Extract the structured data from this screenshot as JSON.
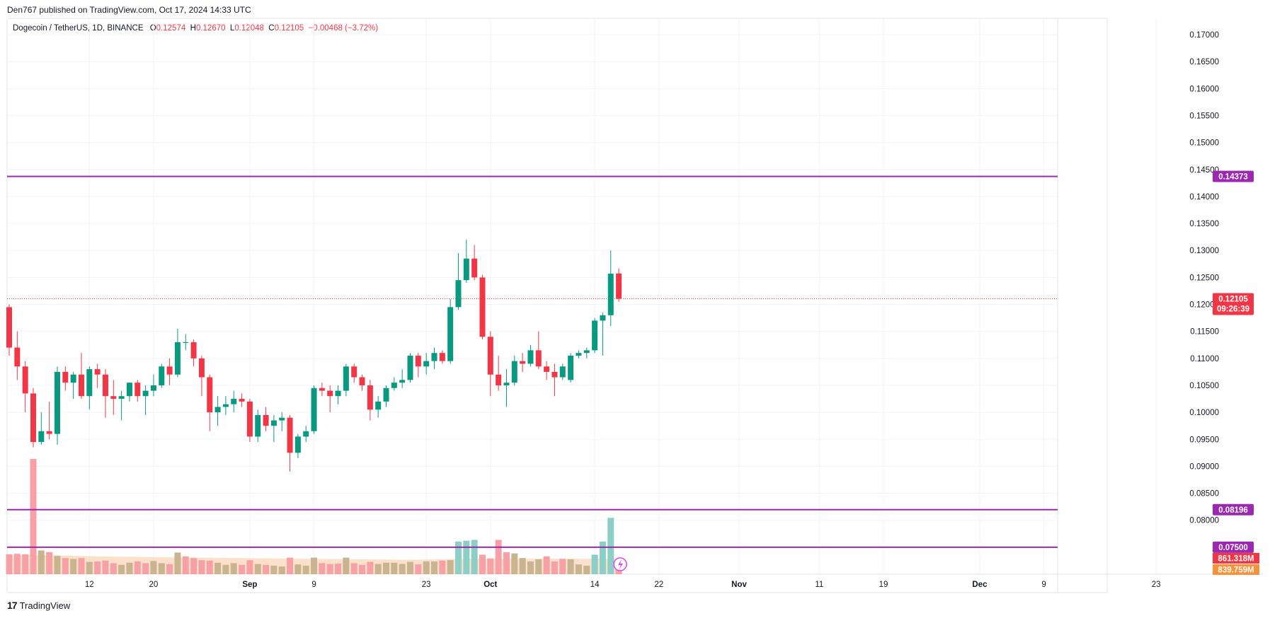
{
  "header": {
    "published": "Den767 published on TradingView.com, Oct 17, 2024 14:33 UTC"
  },
  "legend": {
    "symbol": "Dogecoin / TetherUS, 1D, BINANCE",
    "o_label": "O",
    "o_value": "0.12574",
    "h_label": "H",
    "h_value": "0.12670",
    "l_label": "L",
    "l_value": "0.12048",
    "c_label": "C",
    "c_value": "0.12105",
    "change": "−0.00468 (−3.72%)"
  },
  "footer": {
    "brand": "TradingView",
    "logo": "17"
  },
  "colors": {
    "up": "#089981",
    "down": "#f23645",
    "level_line": "#9c27b0",
    "vol_up": "#8ccfc7",
    "vol_down": "#f7a1a6",
    "vol_neutral": "#c8b48f",
    "vol_ma": "#f8c49a",
    "grid": "#f0f3fa",
    "current_price": "#f23645"
  },
  "chart_data": {
    "type": "candlestick",
    "y_axis": {
      "min": 0.07,
      "max": 0.1725,
      "ticks": [
        "0.17000",
        "0.16500",
        "0.16000",
        "0.15500",
        "0.15000",
        "0.14500",
        "0.14000",
        "0.13500",
        "0.13000",
        "0.12500",
        "0.12000",
        "0.11500",
        "0.11000",
        "0.10500",
        "0.10000",
        "0.09500",
        "0.09000",
        "0.08500",
        "0.08000"
      ]
    },
    "x_axis": {
      "start_date": "2024-08-02",
      "ticks": [
        {
          "label": "12",
          "date": "2024-08-12"
        },
        {
          "label": "20",
          "date": "2024-08-20"
        },
        {
          "label": "Sep",
          "date": "2024-09-01",
          "bold": true
        },
        {
          "label": "9",
          "date": "2024-09-09"
        },
        {
          "label": "23",
          "date": "2024-09-23"
        },
        {
          "label": "Oct",
          "date": "2024-10-01",
          "bold": true
        },
        {
          "label": "14",
          "date": "2024-10-14"
        },
        {
          "label": "22",
          "date": "2024-10-22"
        },
        {
          "label": "Nov",
          "date": "2024-11-01",
          "bold": true
        },
        {
          "label": "11",
          "date": "2024-11-11"
        },
        {
          "label": "19",
          "date": "2024-11-19"
        },
        {
          "label": "Dec",
          "date": "2024-12-01",
          "bold": true
        },
        {
          "label": "9",
          "date": "2024-12-09"
        },
        {
          "label": "23",
          "date": "2024-12-23"
        }
      ]
    },
    "horizontal_levels": [
      {
        "price": 0.14373,
        "label": "0.14373"
      },
      {
        "price": 0.08196,
        "label": "0.08196"
      },
      {
        "price": 0.075,
        "label": "0.07500"
      }
    ],
    "current_price": {
      "price": 0.12105,
      "label": "0.12105",
      "countdown": "09:26:39"
    },
    "volume_labels": [
      {
        "label": "861.318M",
        "color": "#f23645"
      },
      {
        "label": "839.759M",
        "color": "#f7923a"
      }
    ],
    "candles": [
      {
        "date": "2024-08-02",
        "o": 0.1195,
        "h": 0.12,
        "l": 0.1105,
        "c": 0.112
      },
      {
        "date": "2024-08-03",
        "o": 0.112,
        "h": 0.115,
        "l": 0.106,
        "c": 0.1085
      },
      {
        "date": "2024-08-04",
        "o": 0.1085,
        "h": 0.1095,
        "l": 0.1,
        "c": 0.1035
      },
      {
        "date": "2024-08-05",
        "o": 0.1035,
        "h": 0.1045,
        "l": 0.0935,
        "c": 0.0945
      },
      {
        "date": "2024-08-06",
        "o": 0.0945,
        "h": 0.1,
        "l": 0.094,
        "c": 0.0965
      },
      {
        "date": "2024-08-07",
        "o": 0.0965,
        "h": 0.102,
        "l": 0.095,
        "c": 0.096
      },
      {
        "date": "2024-08-08",
        "o": 0.096,
        "h": 0.1085,
        "l": 0.094,
        "c": 0.1075
      },
      {
        "date": "2024-08-09",
        "o": 0.1075,
        "h": 0.1085,
        "l": 0.104,
        "c": 0.1055
      },
      {
        "date": "2024-08-10",
        "o": 0.1055,
        "h": 0.1075,
        "l": 0.1025,
        "c": 0.107
      },
      {
        "date": "2024-08-11",
        "o": 0.107,
        "h": 0.111,
        "l": 0.1025,
        "c": 0.103
      },
      {
        "date": "2024-08-12",
        "o": 0.103,
        "h": 0.1085,
        "l": 0.1005,
        "c": 0.108
      },
      {
        "date": "2024-08-13",
        "o": 0.108,
        "h": 0.109,
        "l": 0.1045,
        "c": 0.107
      },
      {
        "date": "2024-08-14",
        "o": 0.107,
        "h": 0.108,
        "l": 0.099,
        "c": 0.103
      },
      {
        "date": "2024-08-15",
        "o": 0.103,
        "h": 0.106,
        "l": 0.0995,
        "c": 0.1025
      },
      {
        "date": "2024-08-16",
        "o": 0.1025,
        "h": 0.104,
        "l": 0.0985,
        "c": 0.103
      },
      {
        "date": "2024-08-17",
        "o": 0.103,
        "h": 0.1055,
        "l": 0.102,
        "c": 0.1055
      },
      {
        "date": "2024-08-18",
        "o": 0.1055,
        "h": 0.106,
        "l": 0.102,
        "c": 0.103
      },
      {
        "date": "2024-08-19",
        "o": 0.103,
        "h": 0.105,
        "l": 0.0995,
        "c": 0.104
      },
      {
        "date": "2024-08-20",
        "o": 0.104,
        "h": 0.107,
        "l": 0.103,
        "c": 0.105
      },
      {
        "date": "2024-08-21",
        "o": 0.105,
        "h": 0.109,
        "l": 0.1045,
        "c": 0.1085
      },
      {
        "date": "2024-08-22",
        "o": 0.1085,
        "h": 0.11,
        "l": 0.105,
        "c": 0.107
      },
      {
        "date": "2024-08-23",
        "o": 0.107,
        "h": 0.1155,
        "l": 0.1065,
        "c": 0.113
      },
      {
        "date": "2024-08-24",
        "o": 0.113,
        "h": 0.1145,
        "l": 0.1115,
        "c": 0.113
      },
      {
        "date": "2024-08-25",
        "o": 0.113,
        "h": 0.1135,
        "l": 0.1085,
        "c": 0.11
      },
      {
        "date": "2024-08-26",
        "o": 0.11,
        "h": 0.1105,
        "l": 0.103,
        "c": 0.1065
      },
      {
        "date": "2024-08-27",
        "o": 0.1065,
        "h": 0.107,
        "l": 0.0965,
        "c": 0.1
      },
      {
        "date": "2024-08-28",
        "o": 0.1,
        "h": 0.103,
        "l": 0.0975,
        "c": 0.101
      },
      {
        "date": "2024-08-29",
        "o": 0.101,
        "h": 0.103,
        "l": 0.0995,
        "c": 0.1015
      },
      {
        "date": "2024-08-30",
        "o": 0.1015,
        "h": 0.104,
        "l": 0.1,
        "c": 0.1025
      },
      {
        "date": "2024-08-31",
        "o": 0.1025,
        "h": 0.1035,
        "l": 0.101,
        "c": 0.102
      },
      {
        "date": "2024-09-01",
        "o": 0.102,
        "h": 0.1025,
        "l": 0.0945,
        "c": 0.0955
      },
      {
        "date": "2024-09-02",
        "o": 0.0955,
        "h": 0.1005,
        "l": 0.0945,
        "c": 0.0995
      },
      {
        "date": "2024-09-03",
        "o": 0.0995,
        "h": 0.101,
        "l": 0.0965,
        "c": 0.0975
      },
      {
        "date": "2024-09-04",
        "o": 0.0975,
        "h": 0.0995,
        "l": 0.0945,
        "c": 0.0985
      },
      {
        "date": "2024-09-05",
        "o": 0.0985,
        "h": 0.1,
        "l": 0.0965,
        "c": 0.099
      },
      {
        "date": "2024-09-06",
        "o": 0.099,
        "h": 0.0995,
        "l": 0.089,
        "c": 0.0925
      },
      {
        "date": "2024-09-07",
        "o": 0.0925,
        "h": 0.096,
        "l": 0.0915,
        "c": 0.0955
      },
      {
        "date": "2024-09-08",
        "o": 0.0955,
        "h": 0.0975,
        "l": 0.0945,
        "c": 0.0965
      },
      {
        "date": "2024-09-09",
        "o": 0.0965,
        "h": 0.105,
        "l": 0.096,
        "c": 0.1045
      },
      {
        "date": "2024-09-10",
        "o": 0.1045,
        "h": 0.1055,
        "l": 0.103,
        "c": 0.104
      },
      {
        "date": "2024-09-11",
        "o": 0.104,
        "h": 0.105,
        "l": 0.1,
        "c": 0.103
      },
      {
        "date": "2024-09-12",
        "o": 0.103,
        "h": 0.105,
        "l": 0.1015,
        "c": 0.104
      },
      {
        "date": "2024-09-13",
        "o": 0.104,
        "h": 0.109,
        "l": 0.103,
        "c": 0.1085
      },
      {
        "date": "2024-09-14",
        "o": 0.1085,
        "h": 0.109,
        "l": 0.1055,
        "c": 0.1065
      },
      {
        "date": "2024-09-15",
        "o": 0.1065,
        "h": 0.107,
        "l": 0.104,
        "c": 0.105
      },
      {
        "date": "2024-09-16",
        "o": 0.105,
        "h": 0.106,
        "l": 0.0985,
        "c": 0.1005
      },
      {
        "date": "2024-09-17",
        "o": 0.1005,
        "h": 0.103,
        "l": 0.099,
        "c": 0.102
      },
      {
        "date": "2024-09-18",
        "o": 0.102,
        "h": 0.105,
        "l": 0.101,
        "c": 0.1045
      },
      {
        "date": "2024-09-19",
        "o": 0.1045,
        "h": 0.1065,
        "l": 0.104,
        "c": 0.1055
      },
      {
        "date": "2024-09-20",
        "o": 0.1055,
        "h": 0.108,
        "l": 0.1045,
        "c": 0.106
      },
      {
        "date": "2024-09-21",
        "o": 0.106,
        "h": 0.111,
        "l": 0.1055,
        "c": 0.1105
      },
      {
        "date": "2024-09-22",
        "o": 0.1105,
        "h": 0.111,
        "l": 0.1065,
        "c": 0.1085
      },
      {
        "date": "2024-09-23",
        "o": 0.1085,
        "h": 0.111,
        "l": 0.107,
        "c": 0.1095
      },
      {
        "date": "2024-09-24",
        "o": 0.1095,
        "h": 0.112,
        "l": 0.108,
        "c": 0.111
      },
      {
        "date": "2024-09-25",
        "o": 0.111,
        "h": 0.1115,
        "l": 0.109,
        "c": 0.1095
      },
      {
        "date": "2024-09-26",
        "o": 0.1095,
        "h": 0.121,
        "l": 0.109,
        "c": 0.1195
      },
      {
        "date": "2024-09-27",
        "o": 0.1195,
        "h": 0.1295,
        "l": 0.119,
        "c": 0.1245
      },
      {
        "date": "2024-09-28",
        "o": 0.1245,
        "h": 0.132,
        "l": 0.124,
        "c": 0.1285
      },
      {
        "date": "2024-09-29",
        "o": 0.1285,
        "h": 0.131,
        "l": 0.1245,
        "c": 0.125
      },
      {
        "date": "2024-09-30",
        "o": 0.125,
        "h": 0.1255,
        "l": 0.1135,
        "c": 0.114
      },
      {
        "date": "2024-10-01",
        "o": 0.114,
        "h": 0.115,
        "l": 0.103,
        "c": 0.107
      },
      {
        "date": "2024-10-02",
        "o": 0.107,
        "h": 0.1105,
        "l": 0.104,
        "c": 0.105
      },
      {
        "date": "2024-10-03",
        "o": 0.105,
        "h": 0.108,
        "l": 0.101,
        "c": 0.1055
      },
      {
        "date": "2024-10-04",
        "o": 0.1055,
        "h": 0.1105,
        "l": 0.105,
        "c": 0.1095
      },
      {
        "date": "2024-10-05",
        "o": 0.1095,
        "h": 0.111,
        "l": 0.1075,
        "c": 0.109
      },
      {
        "date": "2024-10-06",
        "o": 0.109,
        "h": 0.1125,
        "l": 0.1085,
        "c": 0.1115
      },
      {
        "date": "2024-10-07",
        "o": 0.1115,
        "h": 0.115,
        "l": 0.108,
        "c": 0.1085
      },
      {
        "date": "2024-10-08",
        "o": 0.1085,
        "h": 0.1095,
        "l": 0.106,
        "c": 0.1075
      },
      {
        "date": "2024-10-09",
        "o": 0.1075,
        "h": 0.109,
        "l": 0.103,
        "c": 0.1065
      },
      {
        "date": "2024-10-10",
        "o": 0.1065,
        "h": 0.109,
        "l": 0.106,
        "c": 0.1085
      },
      {
        "date": "2024-10-11",
        "o": 0.106,
        "h": 0.111,
        "l": 0.1055,
        "c": 0.1105
      },
      {
        "date": "2024-10-12",
        "o": 0.1105,
        "h": 0.1115,
        "l": 0.11,
        "c": 0.111
      },
      {
        "date": "2024-10-13",
        "o": 0.111,
        "h": 0.112,
        "l": 0.11,
        "c": 0.1115
      },
      {
        "date": "2024-10-14",
        "o": 0.1115,
        "h": 0.1175,
        "l": 0.111,
        "c": 0.117
      },
      {
        "date": "2024-10-15",
        "o": 0.117,
        "h": 0.1185,
        "l": 0.1105,
        "c": 0.118
      },
      {
        "date": "2024-10-16",
        "o": 0.118,
        "h": 0.13,
        "l": 0.116,
        "c": 0.1257
      },
      {
        "date": "2024-10-17",
        "o": 0.12574,
        "h": 0.1267,
        "l": 0.12048,
        "c": 0.12105
      }
    ],
    "volume": {
      "max": 1300,
      "ma": [
        430,
        440,
        450,
        460,
        455,
        450,
        445,
        440,
        435,
        430,
        425,
        420,
        418,
        415,
        412,
        410,
        408,
        405,
        402,
        400,
        398,
        396,
        394,
        392,
        390,
        388,
        386,
        384,
        382,
        380,
        378,
        376,
        374,
        372,
        370,
        368,
        366,
        364,
        362,
        360,
        358,
        356,
        354,
        352,
        350,
        348,
        346,
        344,
        342,
        340,
        340,
        342,
        345,
        348,
        352,
        356,
        360,
        362,
        364,
        365,
        366,
        366,
        366,
        366,
        366,
        366,
        366,
        366,
        366,
        366,
        366,
        366,
        366,
        366,
        366,
        366,
        366
      ],
      "values": [
        {
          "v": 470,
          "c": "down"
        },
        {
          "v": 480,
          "c": "down"
        },
        {
          "v": 470,
          "c": "down"
        },
        {
          "v": 2720,
          "c": "down"
        },
        {
          "v": 560,
          "c": "neutral"
        },
        {
          "v": 520,
          "c": "down"
        },
        {
          "v": 430,
          "c": "neutral"
        },
        {
          "v": 380,
          "c": "down"
        },
        {
          "v": 360,
          "c": "neutral"
        },
        {
          "v": 380,
          "c": "down"
        },
        {
          "v": 290,
          "c": "neutral"
        },
        {
          "v": 300,
          "c": "down"
        },
        {
          "v": 320,
          "c": "down"
        },
        {
          "v": 260,
          "c": "down"
        },
        {
          "v": 220,
          "c": "neutral"
        },
        {
          "v": 270,
          "c": "neutral"
        },
        {
          "v": 300,
          "c": "down"
        },
        {
          "v": 260,
          "c": "down"
        },
        {
          "v": 310,
          "c": "neutral"
        },
        {
          "v": 260,
          "c": "neutral"
        },
        {
          "v": 240,
          "c": "down"
        },
        {
          "v": 510,
          "c": "neutral"
        },
        {
          "v": 420,
          "c": "down"
        },
        {
          "v": 380,
          "c": "down"
        },
        {
          "v": 330,
          "c": "down"
        },
        {
          "v": 320,
          "c": "down"
        },
        {
          "v": 270,
          "c": "neutral"
        },
        {
          "v": 220,
          "c": "neutral"
        },
        {
          "v": 260,
          "c": "neutral"
        },
        {
          "v": 220,
          "c": "down"
        },
        {
          "v": 330,
          "c": "down"
        },
        {
          "v": 240,
          "c": "neutral"
        },
        {
          "v": 220,
          "c": "down"
        },
        {
          "v": 200,
          "c": "neutral"
        },
        {
          "v": 180,
          "c": "neutral"
        },
        {
          "v": 390,
          "c": "down"
        },
        {
          "v": 230,
          "c": "neutral"
        },
        {
          "v": 200,
          "c": "neutral"
        },
        {
          "v": 390,
          "c": "neutral"
        },
        {
          "v": 260,
          "c": "down"
        },
        {
          "v": 240,
          "c": "down"
        },
        {
          "v": 250,
          "c": "down"
        },
        {
          "v": 390,
          "c": "neutral"
        },
        {
          "v": 260,
          "c": "down"
        },
        {
          "v": 220,
          "c": "down"
        },
        {
          "v": 290,
          "c": "down"
        },
        {
          "v": 240,
          "c": "neutral"
        },
        {
          "v": 270,
          "c": "neutral"
        },
        {
          "v": 270,
          "c": "neutral"
        },
        {
          "v": 240,
          "c": "neutral"
        },
        {
          "v": 290,
          "c": "neutral"
        },
        {
          "v": 230,
          "c": "down"
        },
        {
          "v": 300,
          "c": "neutral"
        },
        {
          "v": 300,
          "c": "neutral"
        },
        {
          "v": 320,
          "c": "down"
        },
        {
          "v": 330,
          "c": "neutral"
        },
        {
          "v": 770,
          "c": "up"
        },
        {
          "v": 790,
          "c": "up"
        },
        {
          "v": 810,
          "c": "up"
        },
        {
          "v": 460,
          "c": "down"
        },
        {
          "v": 370,
          "c": "down"
        },
        {
          "v": 810,
          "c": "down"
        },
        {
          "v": 520,
          "c": "down"
        },
        {
          "v": 490,
          "c": "neutral"
        },
        {
          "v": 380,
          "c": "neutral"
        },
        {
          "v": 300,
          "c": "neutral"
        },
        {
          "v": 350,
          "c": "neutral"
        },
        {
          "v": 420,
          "c": "down"
        },
        {
          "v": 300,
          "c": "down"
        },
        {
          "v": 360,
          "c": "down"
        },
        {
          "v": 350,
          "c": "neutral"
        },
        {
          "v": 230,
          "c": "neutral"
        },
        {
          "v": 200,
          "c": "neutral"
        },
        {
          "v": 460,
          "c": "up"
        },
        {
          "v": 770,
          "c": "up"
        },
        {
          "v": 1330,
          "c": "up"
        },
        {
          "v": 330,
          "c": "down"
        }
      ]
    }
  }
}
